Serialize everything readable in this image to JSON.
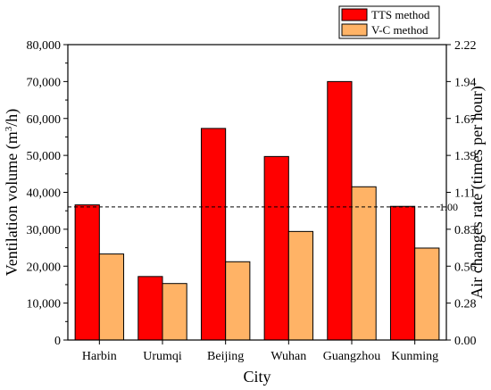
{
  "chart_data": {
    "type": "bar",
    "categories": [
      "Harbin",
      "Urumqi",
      "Beijing",
      "Wuhan",
      "Guangzhou",
      "Kunming"
    ],
    "series": [
      {
        "name": "TTS method",
        "color": "#ff0000",
        "values": [
          36600,
          17200,
          57300,
          49700,
          70000,
          36200
        ]
      },
      {
        "name": "V-C method",
        "color": "#ffb366",
        "values": [
          23300,
          15300,
          21200,
          29400,
          41500,
          24900
        ]
      }
    ],
    "xlabel": "City",
    "ylabel_main": "Ventilation volume (m",
    "ylabel_sup": "3",
    "ylabel_tail": "/h)",
    "y2label": "Air changes rate (times per hour)",
    "ylim": [
      0,
      80000
    ],
    "y2lim": [
      0,
      2.22
    ],
    "yticks": [
      "0",
      "10,000",
      "20,000",
      "30,000",
      "40,000",
      "50,000",
      "60,000",
      "70,000",
      "80,000"
    ],
    "y2ticks": [
      "0.00",
      "0.28",
      "0.56",
      "0.83",
      "1.11",
      "1.39",
      "1.67",
      "1.94",
      "2.22"
    ],
    "reference_line": {
      "value": 1.0,
      "label": "1.00"
    },
    "legend_position": "top-right",
    "grid": false
  }
}
